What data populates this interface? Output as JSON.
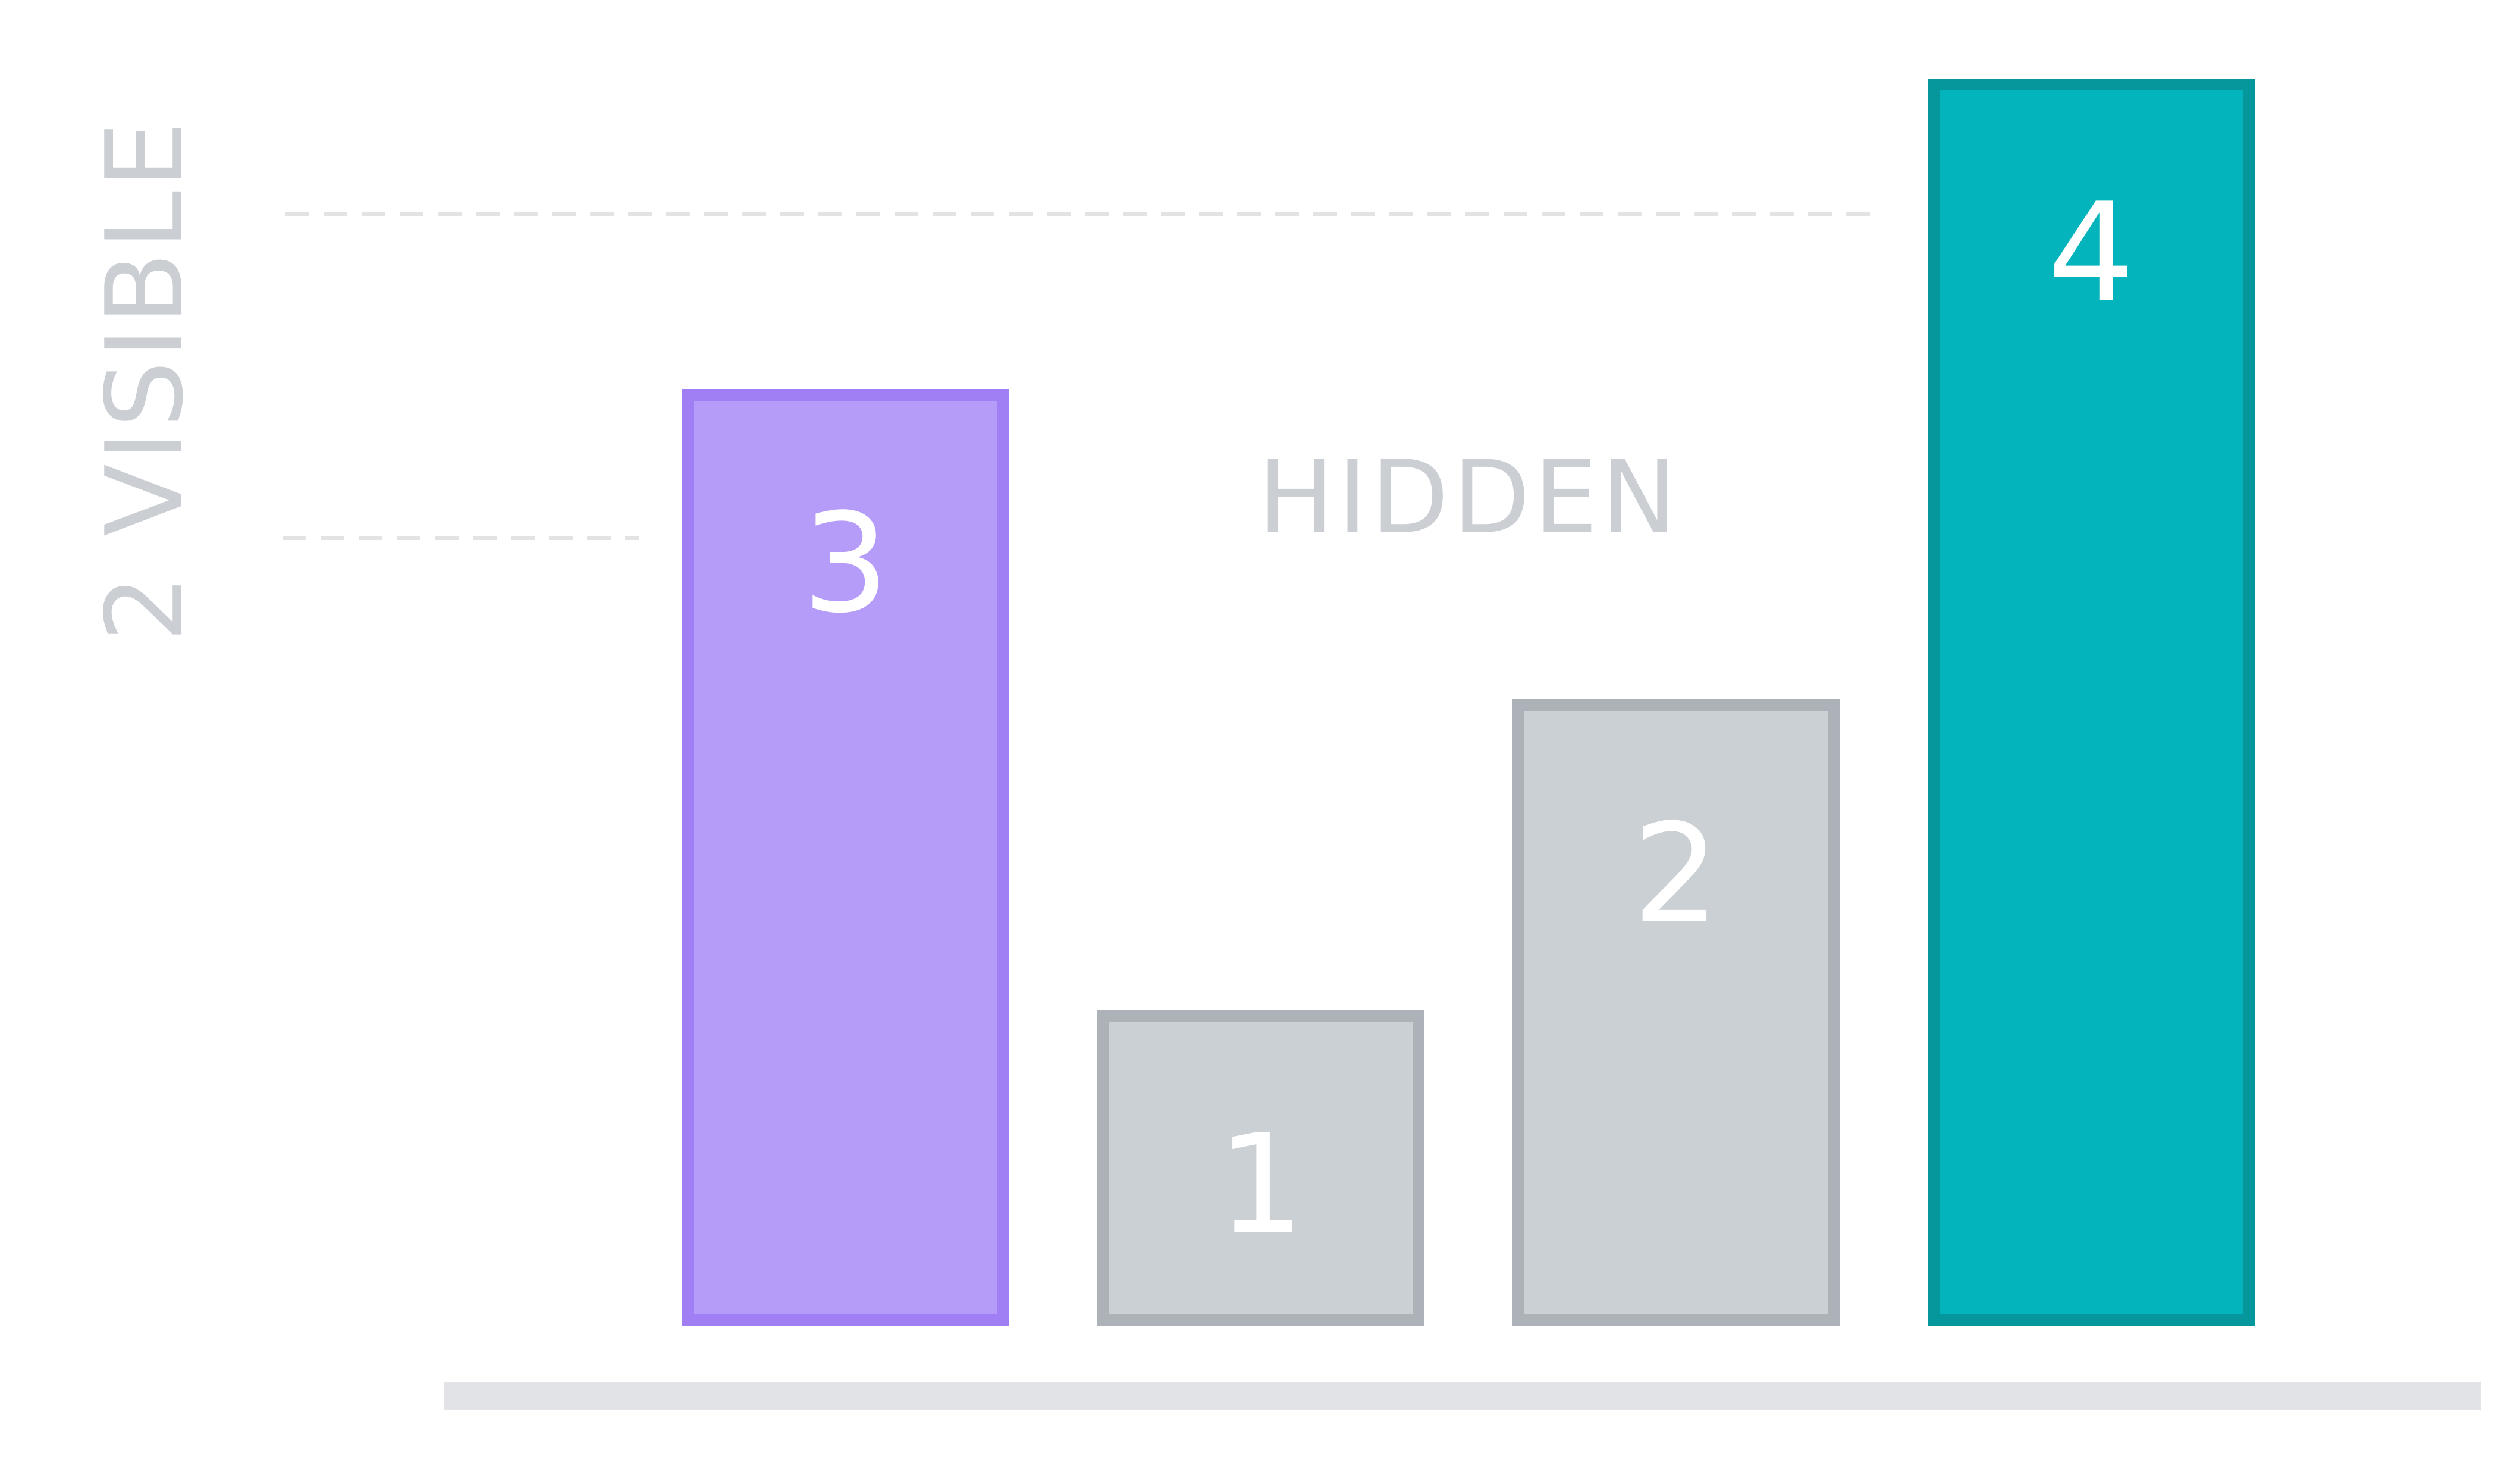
{
  "vertical_label": "2 VISIBLE",
  "hidden_label": "HIDDEN",
  "chart_data": {
    "type": "bar",
    "categories": [
      "3",
      "1",
      "2",
      "4"
    ],
    "values": [
      3,
      1,
      2,
      4
    ],
    "visible": [
      true,
      false,
      false,
      true
    ],
    "title": "",
    "xlabel": "",
    "ylabel": "2 VISIBLE",
    "ylim": [
      0,
      4
    ],
    "grid": false
  },
  "colors": {
    "visible_3_fill": "#b59cf9",
    "visible_3_border": "#a07ef4",
    "hidden_fill": "#cbd0d4",
    "hidden_border": "#adb2b9",
    "visible_4_fill": "#04b4bc",
    "visible_4_border": "#05979c",
    "guide_dash": "#e3e3e3",
    "baseline": "#e1e3e7",
    "muted_text": "#cbcfd4"
  }
}
